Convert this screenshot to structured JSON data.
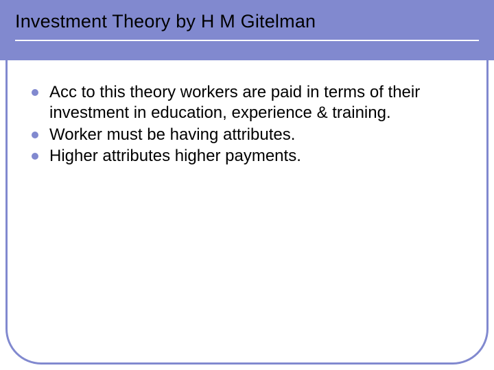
{
  "slide": {
    "title": "Investment Theory by H M Gitelman",
    "bullets": [
      "Acc to this theory workers are paid in terms of their investment in education, experience & training.",
      "Worker must be having attributes.",
      "Higher attributes higher payments."
    ]
  },
  "style": {
    "band_color": "#8189cf",
    "underline_color": "#ffffff",
    "title_fontsize": 27,
    "title_color": "#000000",
    "bullet_color": "#8189cf",
    "bullet_text_color": "#000000",
    "bullet_fontsize": 24,
    "frame_border_color": "#8189cf",
    "frame_corner_radius": 52,
    "background_color": "#ffffff"
  }
}
